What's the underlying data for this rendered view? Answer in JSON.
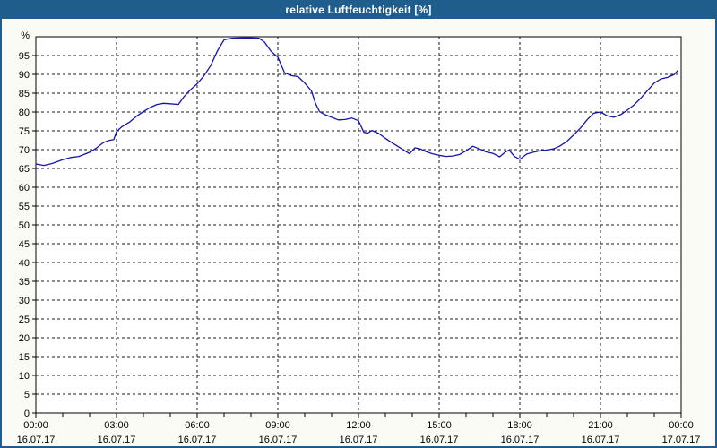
{
  "title": "relative Luftfeuchtigkeit [%]",
  "colors": {
    "titlebar_bg": "#1F5E8C",
    "titlebar_text": "#FFFFFF",
    "frame_border": "#1F5E8C",
    "panel_bg": "#FBFBF5",
    "plot_bg": "#FFFFFF",
    "plot_border": "#000000",
    "grid": "#1A1A1A",
    "tick_text": "#000000",
    "line": "#1414B0"
  },
  "chart_data": {
    "type": "line",
    "title": "relative Luftfeuchtigkeit [%]",
    "xlabel": "",
    "ylabel": "%",
    "xlim_hours": [
      0,
      24
    ],
    "ylim": [
      0,
      100
    ],
    "y_tick_step": 5,
    "y_tick_labels": [
      "0",
      "5",
      "10",
      "15",
      "20",
      "25",
      "30",
      "35",
      "40",
      "45",
      "50",
      "55",
      "60",
      "65",
      "70",
      "75",
      "80",
      "85",
      "90",
      "95"
    ],
    "y_unit_label": "%",
    "x_major_ticks": [
      {
        "hour": 0,
        "time": "00:00",
        "date": "16.07.17"
      },
      {
        "hour": 3,
        "time": "03:00",
        "date": "16.07.17"
      },
      {
        "hour": 6,
        "time": "06:00",
        "date": "16.07.17"
      },
      {
        "hour": 9,
        "time": "09:00",
        "date": "16.07.17"
      },
      {
        "hour": 12,
        "time": "12:00",
        "date": "16.07.17"
      },
      {
        "hour": 15,
        "time": "15:00",
        "date": "16.07.17"
      },
      {
        "hour": 18,
        "time": "18:00",
        "date": "16.07.17"
      },
      {
        "hour": 21,
        "time": "21:00",
        "date": "16.07.17"
      },
      {
        "hour": 24,
        "time": "00:00",
        "date": "17.07.17"
      }
    ],
    "x_minor_step_hours": 1,
    "grid": {
      "horizontal": "dashed",
      "vertical": "dashed"
    },
    "legend": "none",
    "series": [
      {
        "name": "relative Luftfeuchtigkeit",
        "color": "#1414B0",
        "points_hour_percent": [
          [
            0,
            66.2
          ],
          [
            0.3,
            65.8
          ],
          [
            0.6,
            66.3
          ],
          [
            1,
            67.3
          ],
          [
            1.3,
            67.9
          ],
          [
            1.6,
            68.2
          ],
          [
            2,
            69.3
          ],
          [
            2.25,
            70.4
          ],
          [
            2.5,
            71.8
          ],
          [
            2.7,
            72.4
          ],
          [
            2.9,
            72.7
          ],
          [
            3,
            74.8
          ],
          [
            3.2,
            76.1
          ],
          [
            3.5,
            77.4
          ],
          [
            3.75,
            78.9
          ],
          [
            4,
            80.1
          ],
          [
            4.25,
            81.2
          ],
          [
            4.5,
            82.0
          ],
          [
            4.75,
            82.3
          ],
          [
            5,
            82.2
          ],
          [
            5.3,
            82.0
          ],
          [
            5.5,
            84.0
          ],
          [
            5.75,
            85.9
          ],
          [
            6,
            87.5
          ],
          [
            6.25,
            89.6
          ],
          [
            6.5,
            92.3
          ],
          [
            6.75,
            96.2
          ],
          [
            7,
            99.2
          ],
          [
            7.3,
            99.6
          ],
          [
            7.7,
            99.7
          ],
          [
            8,
            99.7
          ],
          [
            8.3,
            99.6
          ],
          [
            8.5,
            98.6
          ],
          [
            8.75,
            96.1
          ],
          [
            9,
            94.6
          ],
          [
            9.25,
            90.4
          ],
          [
            9.5,
            89.7
          ],
          [
            9.75,
            89.4
          ],
          [
            10,
            87.7
          ],
          [
            10.25,
            85.6
          ],
          [
            10.4,
            82.3
          ],
          [
            10.55,
            80.1
          ],
          [
            10.75,
            79.3
          ],
          [
            11,
            78.6
          ],
          [
            11.25,
            77.9
          ],
          [
            11.5,
            78.0
          ],
          [
            11.75,
            78.4
          ],
          [
            12,
            77.7
          ],
          [
            12.2,
            74.6
          ],
          [
            12.35,
            74.4
          ],
          [
            12.5,
            75.1
          ],
          [
            12.75,
            74.3
          ],
          [
            13,
            73.0
          ],
          [
            13.25,
            71.8
          ],
          [
            13.5,
            70.7
          ],
          [
            13.75,
            69.6
          ],
          [
            13.9,
            68.9
          ],
          [
            14.1,
            70.5
          ],
          [
            14.3,
            70.2
          ],
          [
            14.5,
            69.5
          ],
          [
            14.75,
            68.9
          ],
          [
            15,
            68.5
          ],
          [
            15.25,
            68.2
          ],
          [
            15.5,
            68.3
          ],
          [
            15.75,
            68.7
          ],
          [
            16,
            69.7
          ],
          [
            16.25,
            70.9
          ],
          [
            16.5,
            70.2
          ],
          [
            16.75,
            69.4
          ],
          [
            17,
            69.0
          ],
          [
            17.25,
            68.1
          ],
          [
            17.45,
            69.3
          ],
          [
            17.6,
            69.9
          ],
          [
            17.8,
            68.2
          ],
          [
            18,
            67.4
          ],
          [
            18.25,
            68.8
          ],
          [
            18.5,
            69.3
          ],
          [
            18.75,
            69.7
          ],
          [
            19,
            69.9
          ],
          [
            19.25,
            70.2
          ],
          [
            19.5,
            71.0
          ],
          [
            19.75,
            72.2
          ],
          [
            20,
            73.9
          ],
          [
            20.25,
            75.7
          ],
          [
            20.5,
            77.9
          ],
          [
            20.75,
            79.7
          ],
          [
            21,
            80.0
          ],
          [
            21.25,
            79.0
          ],
          [
            21.5,
            78.6
          ],
          [
            21.75,
            79.3
          ],
          [
            22,
            80.5
          ],
          [
            22.25,
            81.9
          ],
          [
            22.5,
            83.7
          ],
          [
            22.75,
            85.7
          ],
          [
            23,
            87.7
          ],
          [
            23.25,
            88.8
          ],
          [
            23.5,
            89.2
          ],
          [
            23.75,
            90.0
          ],
          [
            23.87,
            91.0
          ]
        ]
      }
    ]
  }
}
